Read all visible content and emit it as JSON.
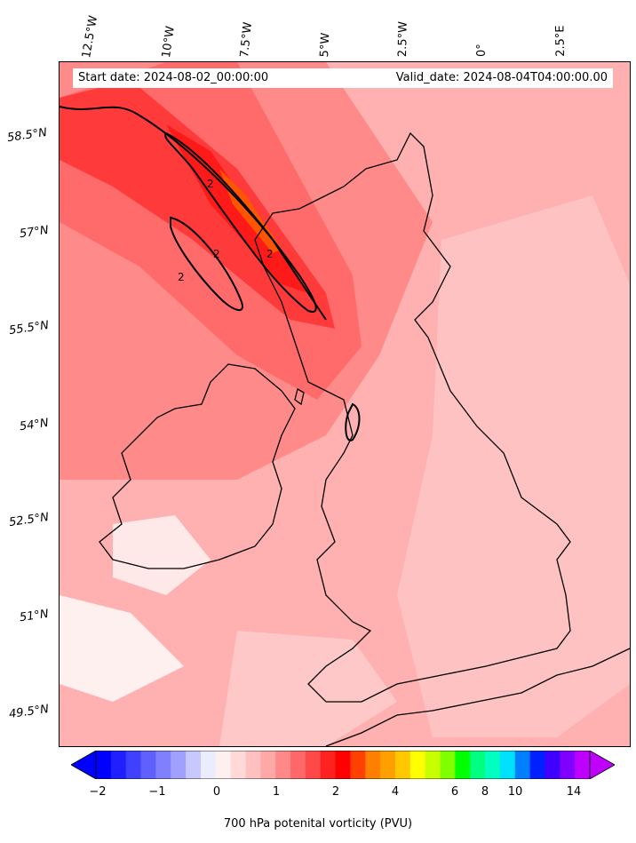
{
  "header": {
    "start_date": "Start date: 2024-08-02_00:00:00",
    "valid_date": "Valid_date: 2024-08-04T04:00:00.00"
  },
  "longitude_labels": [
    "12.5°W",
    "10°W",
    "7.5°W",
    "5°W",
    "2.5°W",
    "0°",
    "2.5°E"
  ],
  "latitude_labels": [
    "58.5°N",
    "57°N",
    "55.5°N",
    "54°N",
    "52.5°N",
    "51°N",
    "49.5°N"
  ],
  "colorbar": {
    "label": "700 hPa potenital vorticity (PVU)",
    "tick_labels": [
      "−2",
      "−1",
      "0",
      "1",
      "2",
      "4",
      "6",
      "8",
      "10",
      "14"
    ],
    "colors": [
      "#0000ff",
      "#2020ff",
      "#4040ff",
      "#6060ff",
      "#8080ff",
      "#a0a0ff",
      "#c8c8ff",
      "#ececff",
      "#fff0f0",
      "#ffd8d8",
      "#ffc0c0",
      "#ffa8a8",
      "#ff8888",
      "#ff6868",
      "#ff4848",
      "#ff2020",
      "#ff0000",
      "#ff4000",
      "#ff8000",
      "#ffa000",
      "#ffc800",
      "#ffff00",
      "#c8ff00",
      "#80ff00",
      "#00ff00",
      "#00ff80",
      "#00ffc0",
      "#00e0ff",
      "#0080ff",
      "#0020ff",
      "#4000ff",
      "#8000ff",
      "#c000ff"
    ],
    "under_color": "#0000ff",
    "over_color": "#c000ff"
  },
  "map": {
    "background_color": "#ffb3b3",
    "high_pv_color": "#ff1a1a",
    "contour_labels": [
      "2",
      "2",
      "2",
      "2"
    ]
  }
}
